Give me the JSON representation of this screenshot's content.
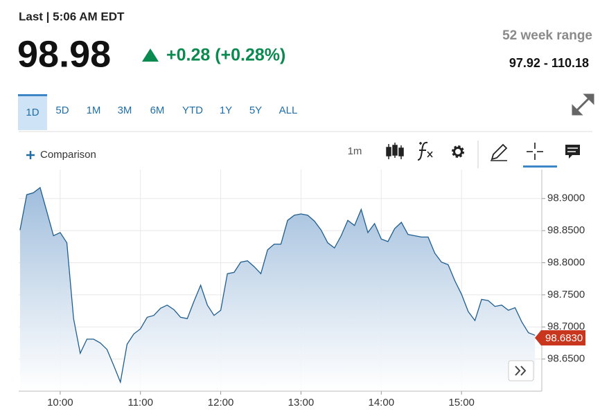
{
  "header": {
    "last": "Last | 5:06 AM EDT",
    "price": "98.98",
    "change": "+0.28 (+0.28%)",
    "range_title": "52 week range",
    "range_value": "97.92 - 110.18"
  },
  "tabs": [
    "1D",
    "5D",
    "1M",
    "3M",
    "6M",
    "YTD",
    "1Y",
    "5Y",
    "ALL"
  ],
  "active_tab": "1D",
  "toolbar": {
    "comparison": "Comparison",
    "interval": "1m"
  },
  "chart_data": {
    "type": "area",
    "x": [
      570,
      575,
      580,
      585,
      590,
      595,
      600,
      605,
      610,
      615,
      620,
      625,
      630,
      635,
      640,
      645,
      650,
      655,
      660,
      665,
      670,
      675,
      680,
      685,
      690,
      695,
      700,
      705,
      710,
      715,
      720,
      725,
      730,
      735,
      740,
      745,
      750,
      755,
      760,
      765,
      770,
      775,
      780,
      785,
      790,
      795,
      800,
      805,
      810,
      815,
      820,
      825,
      830,
      835,
      840,
      845,
      850,
      855,
      860,
      865,
      870,
      875,
      880,
      885,
      890,
      895,
      900,
      905,
      910,
      915,
      920,
      925,
      930,
      935,
      940,
      945,
      950,
      955
    ],
    "series": [
      {
        "color": "#1f5d8d",
        "values": [
          98.851,
          98.906,
          98.909,
          98.917,
          98.88,
          98.842,
          98.847,
          98.831,
          98.713,
          98.659,
          98.681,
          98.681,
          98.675,
          98.665,
          98.64,
          98.614,
          98.673,
          98.689,
          98.697,
          98.715,
          98.718,
          98.729,
          98.734,
          98.727,
          98.715,
          98.713,
          98.74,
          98.765,
          98.734,
          98.718,
          98.726,
          98.783,
          98.785,
          98.801,
          98.803,
          98.794,
          98.783,
          98.82,
          98.829,
          98.829,
          98.866,
          98.874,
          98.876,
          98.874,
          98.865,
          98.851,
          98.831,
          98.823,
          98.842,
          98.866,
          98.858,
          98.883,
          98.847,
          98.861,
          98.837,
          98.833,
          98.853,
          98.863,
          98.844,
          98.842,
          98.84,
          98.84,
          98.815,
          98.801,
          98.797,
          98.772,
          98.751,
          98.724,
          98.71,
          98.743,
          98.741,
          98.732,
          98.734,
          98.726,
          98.73,
          98.708,
          98.691,
          98.687
        ]
      }
    ],
    "current_price": {
      "value": 98.683,
      "label": "98.6830"
    },
    "xlim": [
      569,
      960
    ],
    "xticks": [
      {
        "value": 600,
        "label": "10:00"
      },
      {
        "value": 660,
        "label": "11:00"
      },
      {
        "value": 720,
        "label": "12:00"
      },
      {
        "value": 780,
        "label": "13:00"
      },
      {
        "value": 840,
        "label": "14:00"
      },
      {
        "value": 900,
        "label": "15:00"
      }
    ],
    "ylim": [
      98.6,
      98.945
    ],
    "yticks": [
      {
        "value": 98.65,
        "label": "98.6500"
      },
      {
        "value": 98.7,
        "label": "98.7000"
      },
      {
        "value": 98.75,
        "label": "98.7500"
      },
      {
        "value": 98.8,
        "label": "98.8000"
      },
      {
        "value": 98.85,
        "label": "98.8500"
      },
      {
        "value": 98.9,
        "label": "98.9000"
      }
    ],
    "grid": true
  }
}
